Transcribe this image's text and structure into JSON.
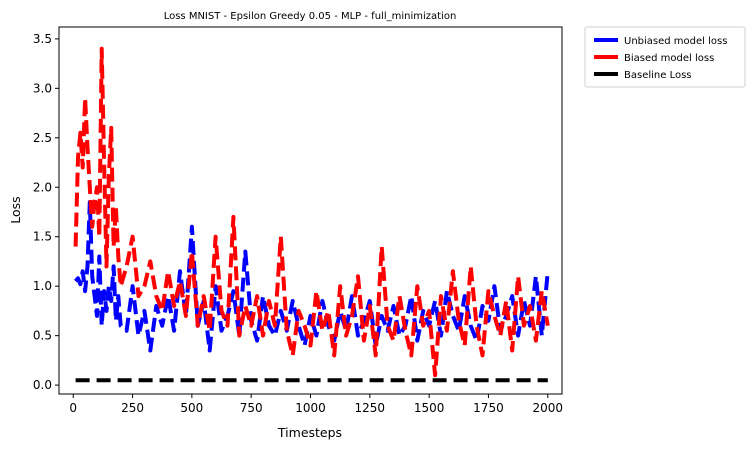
{
  "chart_data": {
    "type": "line",
    "title": "Loss MNIST - Epsilon Greedy 0.05 - MLP - full_minimization",
    "xlabel": "Timesteps",
    "ylabel": "Loss",
    "xlim": [
      -60,
      2060
    ],
    "ylim": [
      -0.09,
      3.62
    ],
    "xticks": [
      0,
      250,
      500,
      750,
      1000,
      1250,
      1500,
      1750,
      2000
    ],
    "yticks": [
      0.0,
      0.5,
      1.0,
      1.5,
      2.0,
      2.5,
      3.0,
      3.5
    ],
    "grid": false,
    "legend_position": "outside-top-right",
    "series": [
      {
        "name": "Unbiased model loss",
        "color": "#0000ff",
        "style": "dashed",
        "x": [
          10,
          20,
          30,
          40,
          50,
          60,
          70,
          80,
          90,
          100,
          110,
          120,
          130,
          140,
          150,
          160,
          170,
          180,
          190,
          200,
          225,
          250,
          275,
          300,
          325,
          350,
          375,
          400,
          425,
          450,
          475,
          500,
          525,
          550,
          575,
          600,
          625,
          650,
          675,
          700,
          725,
          750,
          775,
          800,
          825,
          850,
          875,
          900,
          925,
          950,
          975,
          1000,
          1025,
          1050,
          1075,
          1100,
          1125,
          1150,
          1175,
          1200,
          1225,
          1250,
          1275,
          1300,
          1325,
          1350,
          1375,
          1400,
          1425,
          1450,
          1475,
          1500,
          1525,
          1550,
          1575,
          1600,
          1625,
          1650,
          1675,
          1700,
          1725,
          1750,
          1775,
          1800,
          1825,
          1850,
          1875,
          1900,
          1925,
          1950,
          1975,
          2000
        ],
        "y": [
          1.05,
          1.08,
          1.02,
          1.15,
          0.95,
          1.2,
          1.85,
          1.1,
          0.9,
          0.7,
          1.3,
          0.6,
          0.95,
          0.75,
          1.0,
          0.85,
          1.2,
          0.65,
          0.9,
          0.6,
          0.55,
          1.0,
          0.5,
          0.75,
          0.35,
          0.8,
          0.6,
          0.9,
          0.55,
          1.15,
          0.7,
          1.6,
          0.6,
          0.85,
          0.35,
          1.0,
          0.55,
          0.7,
          0.95,
          0.5,
          1.35,
          0.65,
          0.45,
          0.9,
          0.6,
          0.5,
          0.75,
          0.55,
          0.85,
          0.6,
          0.4,
          0.7,
          0.5,
          0.85,
          0.6,
          0.45,
          0.75,
          0.55,
          0.9,
          0.5,
          0.65,
          0.85,
          0.4,
          0.7,
          0.55,
          0.8,
          0.5,
          0.6,
          0.9,
          0.45,
          0.75,
          0.6,
          0.85,
          0.5,
          0.95,
          0.7,
          0.55,
          0.9,
          0.6,
          0.45,
          0.8,
          0.65,
          1.0,
          0.55,
          0.7,
          0.9,
          0.5,
          0.85,
          0.6,
          1.1,
          0.5,
          1.15
        ]
      },
      {
        "name": "Biased model loss",
        "color": "#ff0000",
        "style": "dashed",
        "x": [
          10,
          20,
          30,
          40,
          50,
          60,
          70,
          80,
          90,
          100,
          110,
          120,
          130,
          140,
          150,
          160,
          170,
          180,
          190,
          200,
          225,
          250,
          275,
          300,
          325,
          350,
          375,
          400,
          425,
          450,
          475,
          500,
          525,
          550,
          575,
          600,
          625,
          650,
          675,
          700,
          725,
          750,
          775,
          800,
          825,
          850,
          875,
          900,
          925,
          950,
          975,
          1000,
          1025,
          1050,
          1075,
          1100,
          1125,
          1150,
          1175,
          1200,
          1225,
          1250,
          1275,
          1300,
          1325,
          1350,
          1375,
          1400,
          1425,
          1450,
          1475,
          1500,
          1525,
          1550,
          1575,
          1600,
          1625,
          1650,
          1675,
          1700,
          1725,
          1750,
          1775,
          1800,
          1825,
          1850,
          1875,
          1900,
          1925,
          1950,
          1975,
          2000
        ],
        "y": [
          1.4,
          2.3,
          2.55,
          2.2,
          2.9,
          2.4,
          2.0,
          1.6,
          1.85,
          2.0,
          1.5,
          3.4,
          2.25,
          1.2,
          2.1,
          2.6,
          1.4,
          1.8,
          1.3,
          1.0,
          1.2,
          1.5,
          0.9,
          1.0,
          1.25,
          0.9,
          0.75,
          1.15,
          0.8,
          1.05,
          0.7,
          1.35,
          0.6,
          0.9,
          0.55,
          1.5,
          0.75,
          0.6,
          1.7,
          0.5,
          0.8,
          0.6,
          0.9,
          0.5,
          0.85,
          0.6,
          1.5,
          0.55,
          0.3,
          0.75,
          0.6,
          0.4,
          0.95,
          0.55,
          0.75,
          0.3,
          1.0,
          0.5,
          0.7,
          1.1,
          0.45,
          0.8,
          0.3,
          1.4,
          0.6,
          0.45,
          0.9,
          0.55,
          0.3,
          1.0,
          0.6,
          0.75,
          0.1,
          0.9,
          0.55,
          1.15,
          0.65,
          0.4,
          1.2,
          0.6,
          0.3,
          0.95,
          0.7,
          0.5,
          0.85,
          0.35,
          1.1,
          0.6,
          0.8,
          0.45,
          0.95,
          0.6
        ]
      },
      {
        "name": "Baseline Loss",
        "color": "#000000",
        "style": "dashed",
        "x": [
          10,
          2000
        ],
        "y": [
          0.05,
          0.05
        ]
      }
    ]
  }
}
